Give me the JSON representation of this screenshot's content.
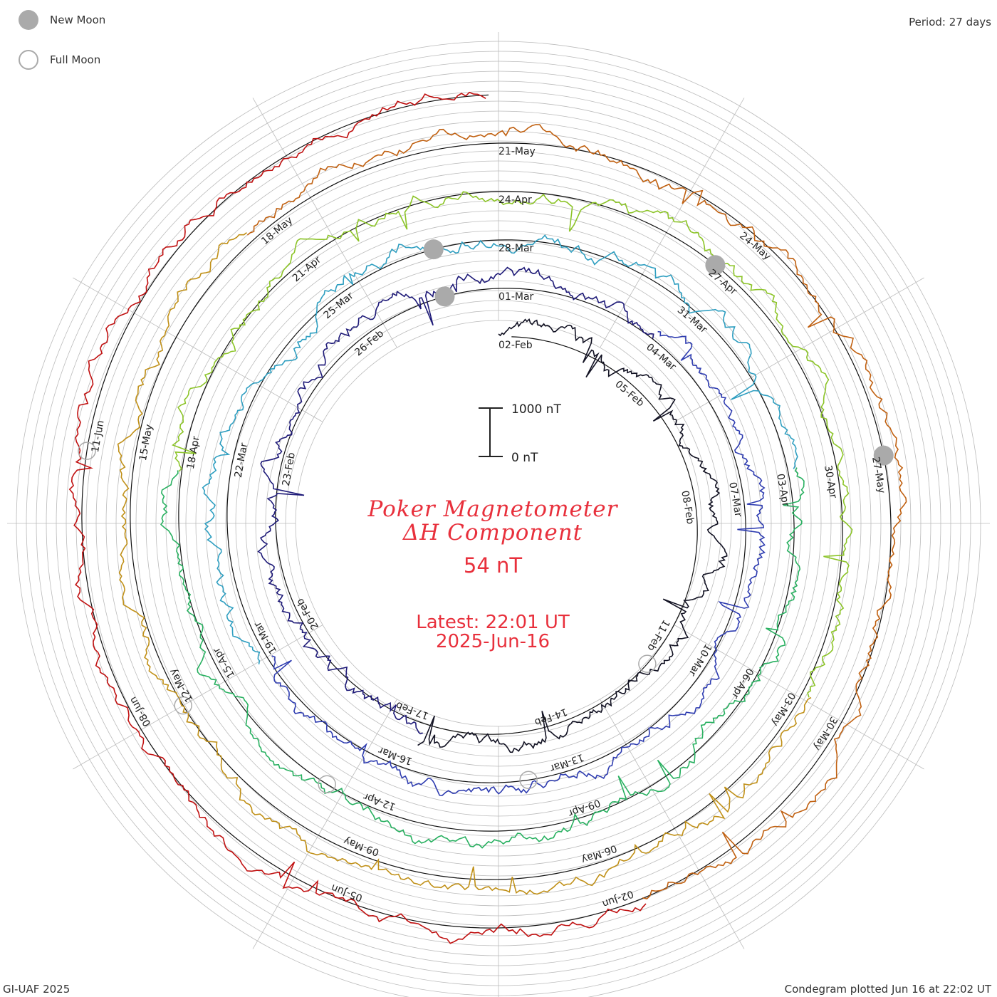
{
  "header": {
    "period_label": "Period: 27 days"
  },
  "legend": {
    "new_moon": "New Moon",
    "full_moon": "Full Moon"
  },
  "center": {
    "title_line1": "Poker Magnetometer",
    "title_line2": "ΔH Component",
    "current_value": "54 nT",
    "latest_line1": "Latest: 22:01 UT",
    "latest_line2": "2025-Jun-16"
  },
  "scale_bar": {
    "top_label": "1000 nT",
    "bottom_label": "0 nT"
  },
  "footer": {
    "credit": "GI-UAF 2025",
    "plotted": "Condegram plotted Jun 16 at 22:02 UT"
  },
  "colors": {
    "accent": "#e8303c",
    "grid": "#bbbbbb",
    "moon": "#aaaaaa",
    "ring_colors": [
      "#111122",
      "#1e1a78",
      "#2e3cb0",
      "#2e9ec0",
      "#28b060",
      "#8cc428",
      "#c09018",
      "#c06010",
      "#c01010"
    ]
  },
  "chart_data": {
    "type": "line",
    "layout": "spiral condegram",
    "period_days": 27,
    "units": "nT",
    "rings": [
      {
        "start": "02-Feb",
        "tick_dates": [
          "02-Feb",
          "05-Feb",
          "08-Feb",
          "11-Feb",
          "14-Feb",
          "17-Feb",
          "20-Feb",
          "23-Feb",
          "26-Feb"
        ]
      },
      {
        "start": "01-Mar",
        "tick_dates": [
          "01-Mar",
          "04-Mar",
          "07-Mar",
          "10-Mar",
          "13-Mar",
          "16-Mar",
          "19-Mar",
          "22-Mar",
          "25-Mar"
        ]
      },
      {
        "start": "28-Mar",
        "tick_dates": [
          "28-Mar",
          "31-Mar",
          "03-Apr",
          "06-Apr",
          "09-Apr",
          "12-Apr",
          "15-Apr",
          "18-Apr",
          "21-Apr"
        ]
      },
      {
        "start": "24-Apr",
        "tick_dates": [
          "24-Apr",
          "27-Apr",
          "30-Apr",
          "03-May",
          "06-May",
          "09-May",
          "12-May",
          "15-May",
          "18-May"
        ]
      },
      {
        "start": "21-May",
        "tick_dates": [
          "21-May",
          "24-May",
          "27-May",
          "30-May",
          "02-Jun",
          "05-Jun",
          "08-Jun",
          "11-Jun"
        ]
      }
    ],
    "new_moons": [
      "28-Feb",
      "27-Mar",
      "27-Apr",
      "27-May"
    ],
    "full_moons": [
      "12-Feb",
      "14-Mar",
      "13-Apr",
      "12-May",
      "11-Jun"
    ],
    "latest_value_nT": 54,
    "scale_bar_nT": [
      0,
      1000
    ]
  }
}
